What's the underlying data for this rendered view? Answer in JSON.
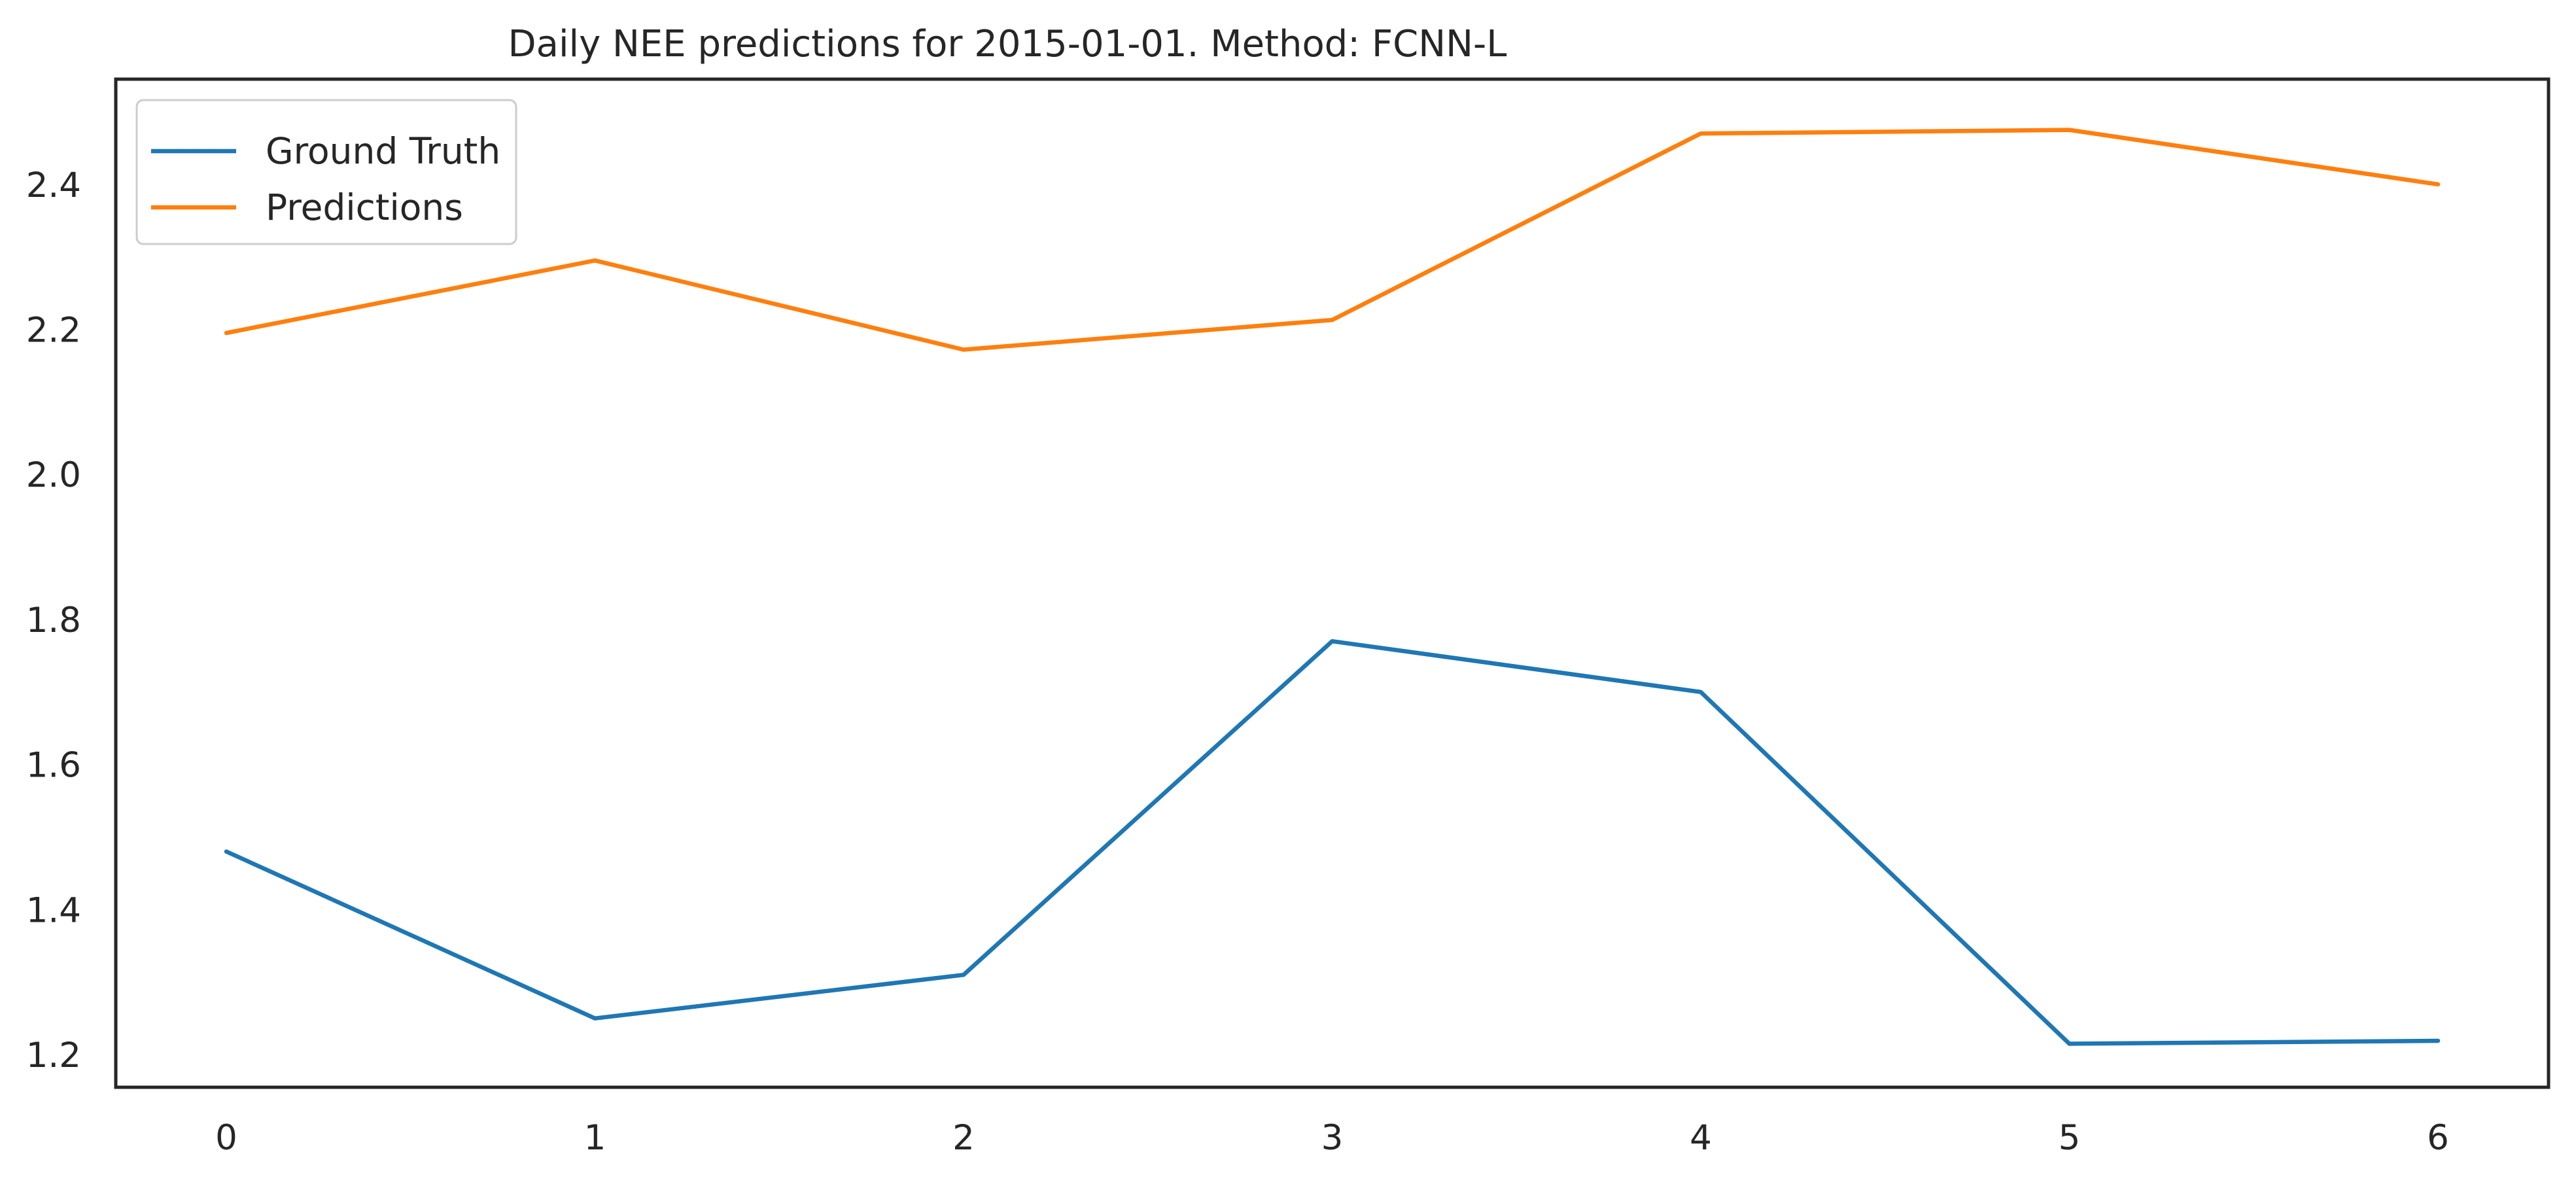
{
  "chart_data": {
    "type": "line",
    "title": "Daily NEE predictions for 2015-01-01. Method: FCNN-L",
    "xlabel": "",
    "ylabel": "",
    "x": [
      0,
      1,
      2,
      3,
      4,
      5,
      6
    ],
    "x_ticks": [
      "0",
      "1",
      "2",
      "3",
      "4",
      "5",
      "6"
    ],
    "y_ticks": [
      "1.2",
      "1.4",
      "1.6",
      "1.8",
      "2.0",
      "2.2",
      "2.4"
    ],
    "xlim": [
      -0.3,
      6.3
    ],
    "ylim": [
      1.155,
      2.545
    ],
    "grid": false,
    "legend_position": "upper-left",
    "series": [
      {
        "name": "Ground Truth",
        "color": "#1f77b4",
        "values": [
          1.48,
          1.25,
          1.31,
          1.77,
          1.7,
          1.215,
          1.219
        ]
      },
      {
        "name": "Predictions",
        "color": "#ff7f0e",
        "values": [
          2.195,
          2.295,
          2.172,
          2.213,
          2.47,
          2.475,
          2.4
        ]
      }
    ]
  }
}
